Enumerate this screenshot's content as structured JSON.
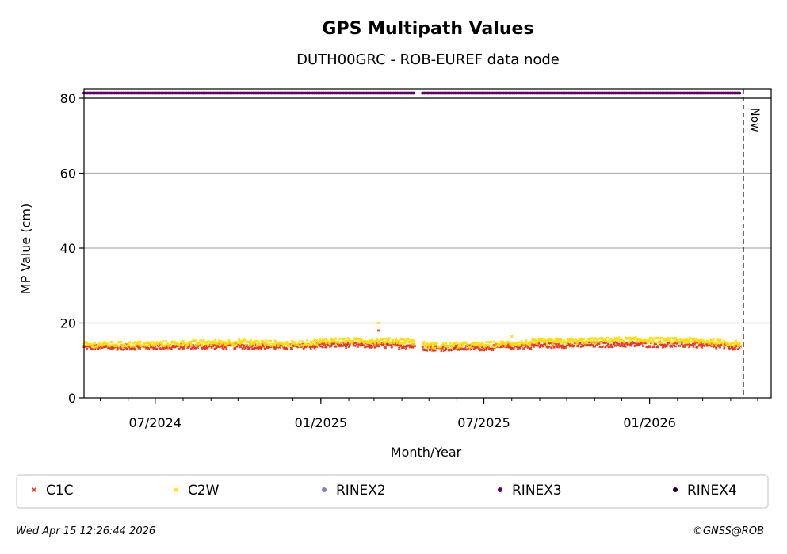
{
  "chart_data": {
    "type": "scatter",
    "title": "GPS Multipath Values",
    "subtitle": "DUTH00GRC - ROB-EUREF data node",
    "xlabel": "Month/Year",
    "ylabel": "MP Value (cm)",
    "xlim": [
      "2024-04-13",
      "2026-05-16"
    ],
    "ylim": [
      0,
      80
    ],
    "yticks": [
      0,
      20,
      40,
      60,
      80
    ],
    "xticks": [
      {
        "date": "2024-07-01",
        "label": "07/2024"
      },
      {
        "date": "2025-01-01",
        "label": "01/2025"
      },
      {
        "date": "2025-07-01",
        "label": "07/2025"
      },
      {
        "date": "2026-01-01",
        "label": "01/2026"
      }
    ],
    "grid": "horizontal",
    "legend_placement": "bottom",
    "now_marker": {
      "date": "2026-04-15",
      "label": "Now"
    },
    "series": [
      {
        "name": "C1C",
        "color": "#ee3322",
        "marker": "x",
        "start": "2024-04-13",
        "end": "2026-04-12",
        "gaps": [
          [
            "2025-04-16",
            "2025-04-23"
          ]
        ],
        "profile": [
          [
            "2024-04-13",
            13.5
          ],
          [
            "2024-07-01",
            13.6
          ],
          [
            "2024-10-01",
            13.8
          ],
          [
            "2024-12-01",
            13.6
          ],
          [
            "2025-01-15",
            14.2
          ],
          [
            "2025-04-10",
            13.9
          ],
          [
            "2025-05-01",
            13.3
          ],
          [
            "2025-07-01",
            13.4
          ],
          [
            "2025-09-01",
            14.0
          ],
          [
            "2025-12-01",
            14.3
          ],
          [
            "2026-02-15",
            14.2
          ],
          [
            "2026-04-12",
            13.5
          ]
        ],
        "outliers": [
          [
            "2025-03-06",
            18.0
          ]
        ]
      },
      {
        "name": "C2W",
        "color": "#ffdd00",
        "marker": "x",
        "start": "2024-04-13",
        "end": "2026-04-12",
        "gaps": [
          [
            "2025-04-16",
            "2025-04-23"
          ]
        ],
        "profile": [
          [
            "2024-04-13",
            14.2
          ],
          [
            "2024-07-01",
            14.4
          ],
          [
            "2024-10-01",
            14.9
          ],
          [
            "2024-12-01",
            14.4
          ],
          [
            "2025-01-15",
            15.3
          ],
          [
            "2025-04-10",
            15.2
          ],
          [
            "2025-05-01",
            14.0
          ],
          [
            "2025-07-01",
            14.2
          ],
          [
            "2025-09-01",
            14.9
          ],
          [
            "2025-12-01",
            15.5
          ],
          [
            "2026-02-15",
            15.3
          ],
          [
            "2026-04-12",
            14.5
          ]
        ],
        "outliers": [
          [
            "2025-03-06",
            20.0
          ],
          [
            "2025-08-01",
            16.4
          ]
        ]
      },
      {
        "name": "RINEX2",
        "color": "#8080c0",
        "marker": "dot"
      },
      {
        "name": "RINEX3",
        "color": "#660066",
        "marker": "dot",
        "start": "2024-04-13",
        "end": "2026-04-12",
        "gaps": [
          [
            "2025-04-16",
            "2025-04-23"
          ]
        ]
      },
      {
        "name": "RINEX4",
        "color": "#220022",
        "marker": "dot"
      }
    ]
  },
  "footer": {
    "timestamp": "Wed Apr 15 12:26:44 2026",
    "credit": "©GNSS@ROB"
  }
}
